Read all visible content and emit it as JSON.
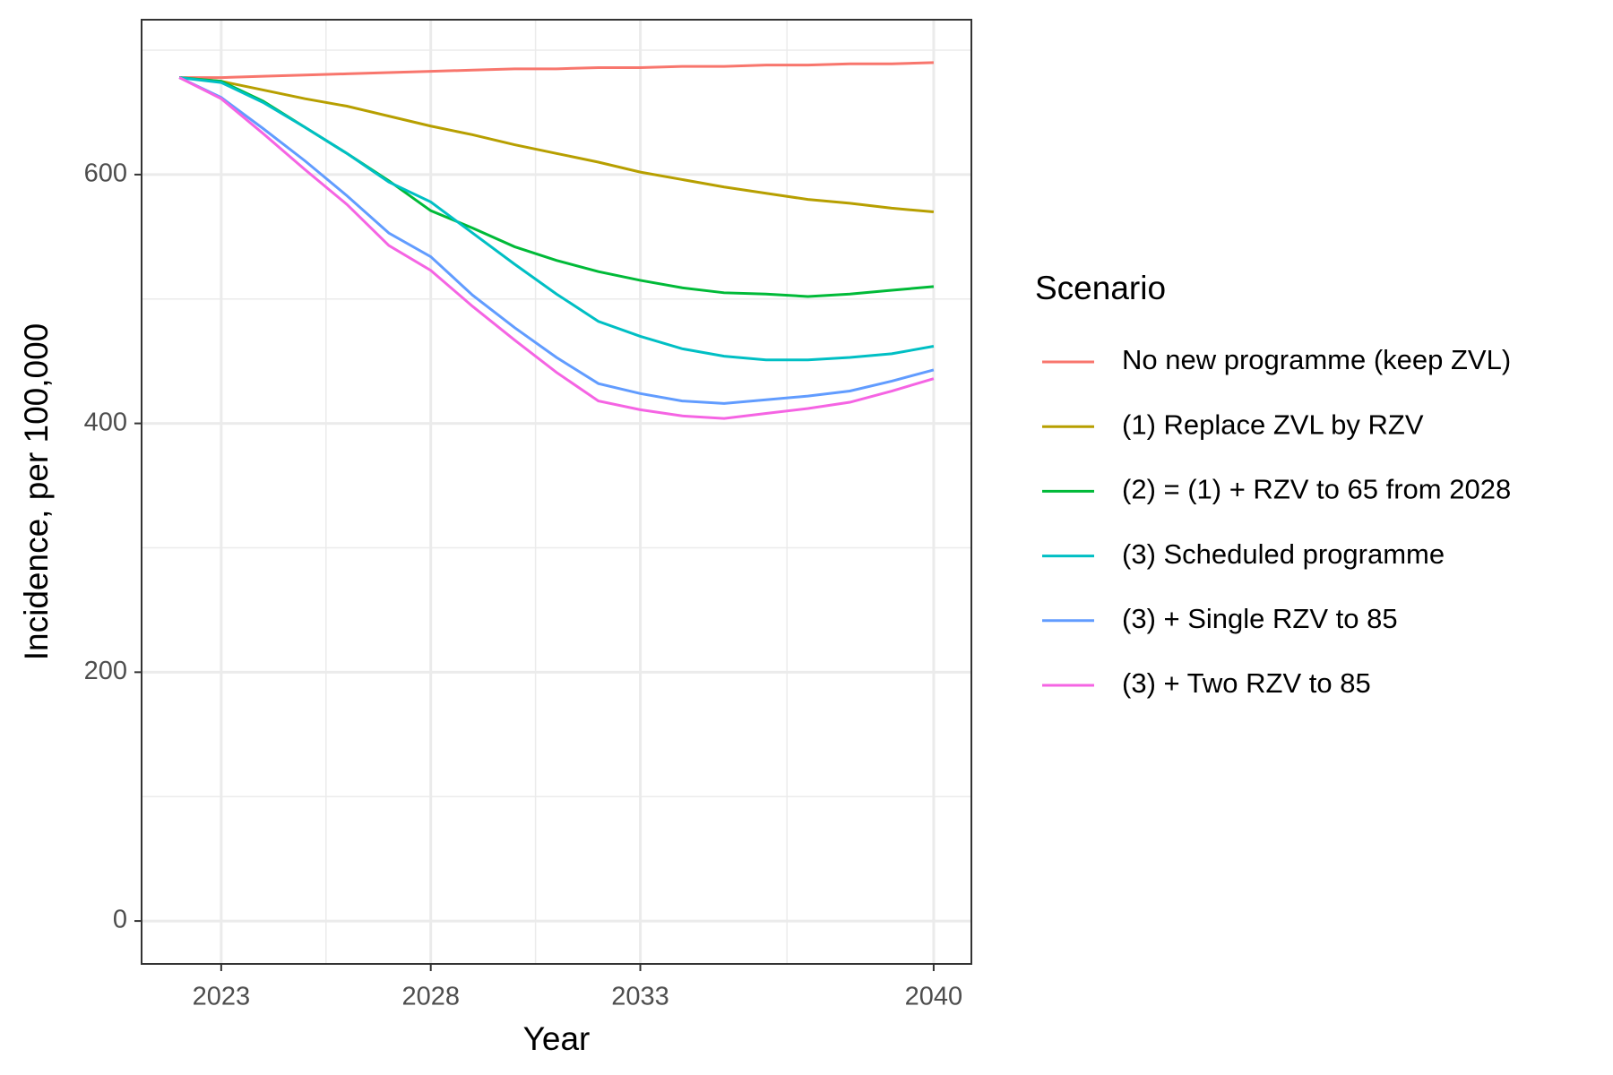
{
  "chart_data": {
    "type": "line",
    "x_label": "Year",
    "y_label": "Incidence, per 100,000",
    "legend_title": "Scenario",
    "legend_position": "right",
    "grid": true,
    "x": [
      2022,
      2023,
      2024,
      2025,
      2026,
      2027,
      2028,
      2029,
      2030,
      2031,
      2032,
      2033,
      2034,
      2035,
      2036,
      2037,
      2038,
      2039,
      2040
    ],
    "xlim": [
      2021.1,
      2040.9
    ],
    "xticks": [
      2023,
      2028,
      2033,
      2040
    ],
    "xminorticks": [
      2025.5,
      2030.5,
      2036.5
    ],
    "ylim": [
      -34.5,
      724.5
    ],
    "yticks": [
      0,
      200,
      400,
      600
    ],
    "yminorticks": [
      100,
      300,
      500,
      700
    ],
    "series": [
      {
        "name": "No new programme (keep ZVL)",
        "color": "#f8766d",
        "values": [
          678,
          678,
          679,
          680,
          681,
          682,
          683,
          684,
          685,
          685,
          686,
          686,
          687,
          687,
          688,
          688,
          689,
          689,
          690
        ]
      },
      {
        "name": "(1) Replace ZVL by RZV",
        "color": "#b79f00",
        "values": [
          678,
          675,
          668,
          661,
          655,
          647,
          639,
          632,
          624,
          617,
          610,
          602,
          596,
          590,
          585,
          580,
          577,
          573,
          570
        ]
      },
      {
        "name": "(2) = (1) + RZV to 65 from 2028",
        "color": "#00ba38",
        "values": [
          678,
          675,
          659,
          638,
          617,
          595,
          571,
          557,
          542,
          531,
          522,
          515,
          509,
          505,
          504,
          502,
          504,
          507,
          510
        ]
      },
      {
        "name": "(3) Scheduled programme",
        "color": "#00bfc4",
        "values": [
          678,
          674,
          658,
          638,
          617,
          594,
          578,
          553,
          528,
          504,
          482,
          470,
          460,
          454,
          451,
          451,
          453,
          456,
          462
        ]
      },
      {
        "name": "(3) + Single RZV to 85",
        "color": "#619cff",
        "values": [
          678,
          662,
          637,
          611,
          583,
          553,
          534,
          503,
          477,
          453,
          432,
          424,
          418,
          416,
          419,
          422,
          426,
          434,
          443
        ]
      },
      {
        "name": "(3) + Two RZV to 85",
        "color": "#f564e3",
        "values": [
          678,
          661,
          633,
          604,
          576,
          543,
          523,
          494,
          467,
          441,
          418,
          411,
          406,
          404,
          408,
          412,
          417,
          426,
          436
        ]
      }
    ]
  }
}
